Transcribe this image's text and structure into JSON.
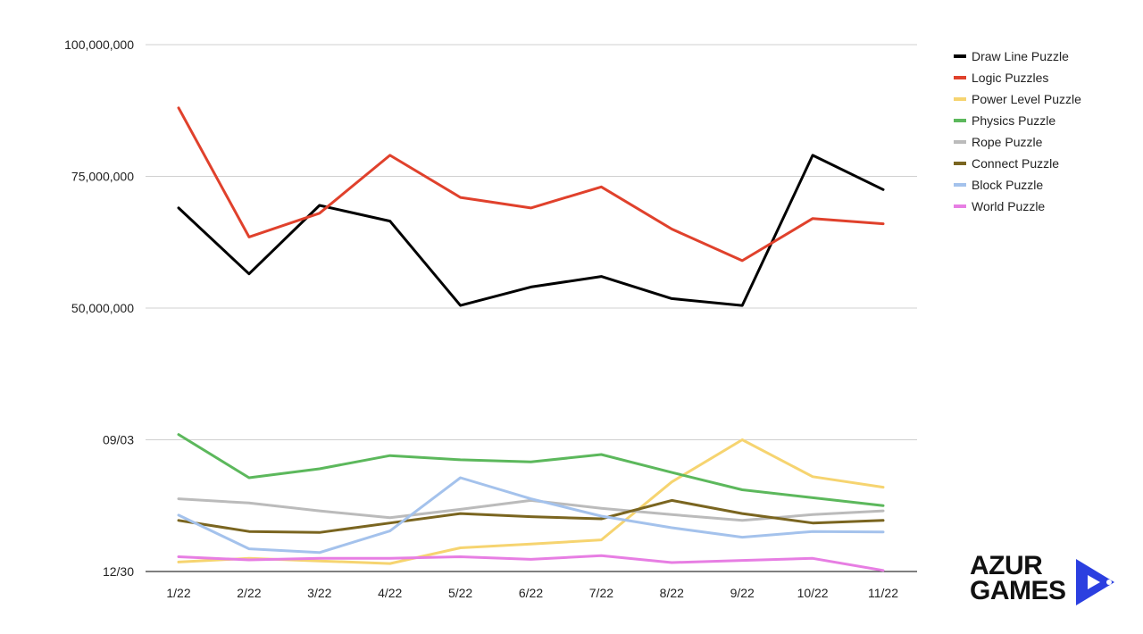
{
  "chart_data": {
    "type": "line",
    "categories": [
      "1/22",
      "2/22",
      "3/22",
      "4/22",
      "5/22",
      "6/22",
      "7/22",
      "8/22",
      "9/22",
      "10/22",
      "11/22"
    ],
    "y_tick_labels": [
      "12/30",
      "09/03",
      "50,000,000",
      "75,000,000",
      "100,000,000"
    ],
    "gridlines": true,
    "legend_position": "top-right",
    "series": [
      {
        "name": "Draw Line Puzzle",
        "color": "#000000",
        "values": [
          0.69,
          0.565,
          0.695,
          0.665,
          0.505,
          0.54,
          0.56,
          0.518,
          0.505,
          0.79,
          0.725
        ]
      },
      {
        "name": "Logic Puzzles",
        "color": "#e0412c",
        "values": [
          0.88,
          0.635,
          0.68,
          0.79,
          0.71,
          0.69,
          0.73,
          0.65,
          0.59,
          0.67,
          0.66
        ]
      },
      {
        "name": "Power Level Puzzle",
        "color": "#f6d470",
        "values": [
          0.018,
          0.025,
          0.02,
          0.015,
          0.045,
          0.052,
          0.06,
          0.17,
          0.25,
          0.18,
          0.16
        ]
      },
      {
        "name": "Physics Puzzle",
        "color": "#5cb85c",
        "values": [
          0.26,
          0.178,
          0.195,
          0.22,
          0.212,
          0.208,
          0.222,
          0.188,
          0.155,
          0.14,
          0.125
        ]
      },
      {
        "name": "Rope Puzzle",
        "color": "#bbbbbb",
        "values": [
          0.138,
          0.13,
          0.115,
          0.102,
          0.118,
          0.135,
          0.12,
          0.108,
          0.097,
          0.108,
          0.115
        ]
      },
      {
        "name": "Connect Puzzle",
        "color": "#7a6520",
        "values": [
          0.097,
          0.076,
          0.074,
          0.092,
          0.11,
          0.104,
          0.1,
          0.135,
          0.11,
          0.092,
          0.097
        ]
      },
      {
        "name": "Block Puzzle",
        "color": "#a4c2ec",
        "values": [
          0.107,
          0.043,
          0.036,
          0.077,
          0.178,
          0.138,
          0.105,
          0.083,
          0.065,
          0.076,
          0.075
        ]
      },
      {
        "name": "World Puzzle",
        "color": "#e77ee3",
        "values": [
          0.028,
          0.022,
          0.025,
          0.025,
          0.028,
          0.023,
          0.03,
          0.017,
          0.021,
          0.025,
          0.002
        ]
      }
    ]
  },
  "logo": {
    "line1": "AZUR",
    "line2": "GAMES"
  }
}
